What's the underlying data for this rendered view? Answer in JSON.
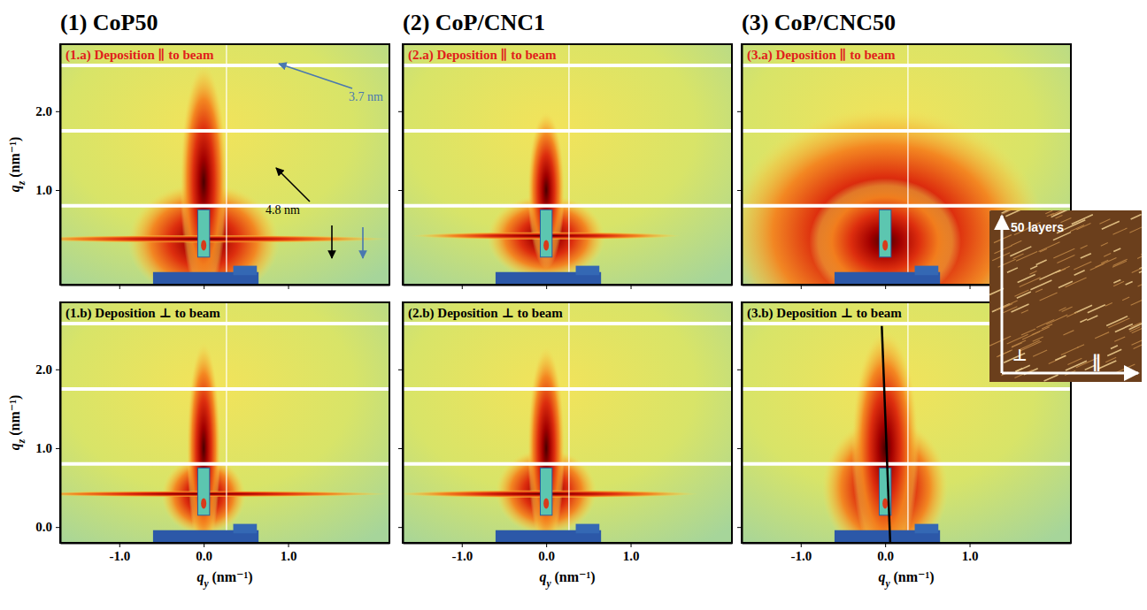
{
  "column_titles": [
    "(1) CoP50",
    "(2) CoP/CNC1",
    "(3) CoP/CNC50"
  ],
  "chart_data": [
    {
      "type": "image",
      "title": "(1.a) Deposition ∥ to beam",
      "ylabel": "qz (nm⁻¹)",
      "xlim": [
        -1.7,
        2.2
      ],
      "ylim": [
        -0.2,
        2.85
      ],
      "xticks": [
        -1,
        0,
        1
      ],
      "yticks": [
        {
          "value": 1,
          "label": "1.0"
        },
        {
          "value": 2,
          "label": "2.0"
        }
      ],
      "tick_labels": "y",
      "annotations": [
        "4.8 nm",
        "3.7 nm"
      ]
    },
    {
      "type": "image",
      "title": "(2.a) Deposition ∥ to beam",
      "xlim": [
        -1.7,
        2.2
      ],
      "ylim": [
        -0.2,
        2.85
      ],
      "xticks": [
        -1,
        0,
        1
      ],
      "yticks": [
        1,
        2
      ],
      "tick_labels": false
    },
    {
      "type": "image",
      "title": "(3.a) Deposition ∥ to beam",
      "xlim": [
        -1.7,
        2.2
      ],
      "ylim": [
        -0.2,
        2.85
      ],
      "xticks": [
        -1,
        0,
        1
      ],
      "yticks": [
        1,
        2
      ],
      "tick_labels": false
    },
    {
      "type": "image",
      "title": "(1.b) Deposition ⊥ to beam",
      "xlabel": "qy (nm⁻¹)",
      "ylabel": "qz (nm⁻¹)",
      "xlim": [
        -1.7,
        2.2
      ],
      "ylim": [
        -0.2,
        2.85
      ],
      "xticks": [
        {
          "value": -1,
          "label": "-1.0"
        },
        {
          "value": 0,
          "label": "0.0"
        },
        {
          "value": 1,
          "label": "1.0"
        }
      ],
      "yticks": [
        {
          "value": 0,
          "label": "0.0"
        },
        {
          "value": 1,
          "label": "1.0"
        },
        {
          "value": 2,
          "label": "2.0"
        }
      ],
      "tick_labels": true
    },
    {
      "type": "image",
      "title": "(2.b) Deposition ⊥ to beam",
      "xlabel": "qy (nm⁻¹)",
      "xlim": [
        -1.7,
        2.2
      ],
      "ylim": [
        -0.2,
        2.85
      ],
      "xticks": [
        {
          "value": -1,
          "label": "-1.0"
        },
        {
          "value": 0,
          "label": "0.0"
        },
        {
          "value": 1,
          "label": "1.0"
        }
      ],
      "yticks": [
        0,
        1,
        2
      ],
      "tick_labels": "x"
    },
    {
      "type": "image",
      "title": "(3.b) Deposition ⊥ to beam",
      "xlabel": "qy (nm⁻¹)",
      "xlim": [
        -1.7,
        2.2
      ],
      "ylim": [
        -0.2,
        2.85
      ],
      "xticks": [
        {
          "value": -1,
          "label": "-1.0"
        },
        {
          "value": 0,
          "label": "0.0"
        },
        {
          "value": 1,
          "label": "1.0"
        }
      ],
      "yticks": [
        0,
        1,
        2
      ],
      "tick_labels": "x"
    }
  ],
  "inset": {
    "labels": [
      "50 layers",
      "⊥",
      "∥"
    ]
  }
}
